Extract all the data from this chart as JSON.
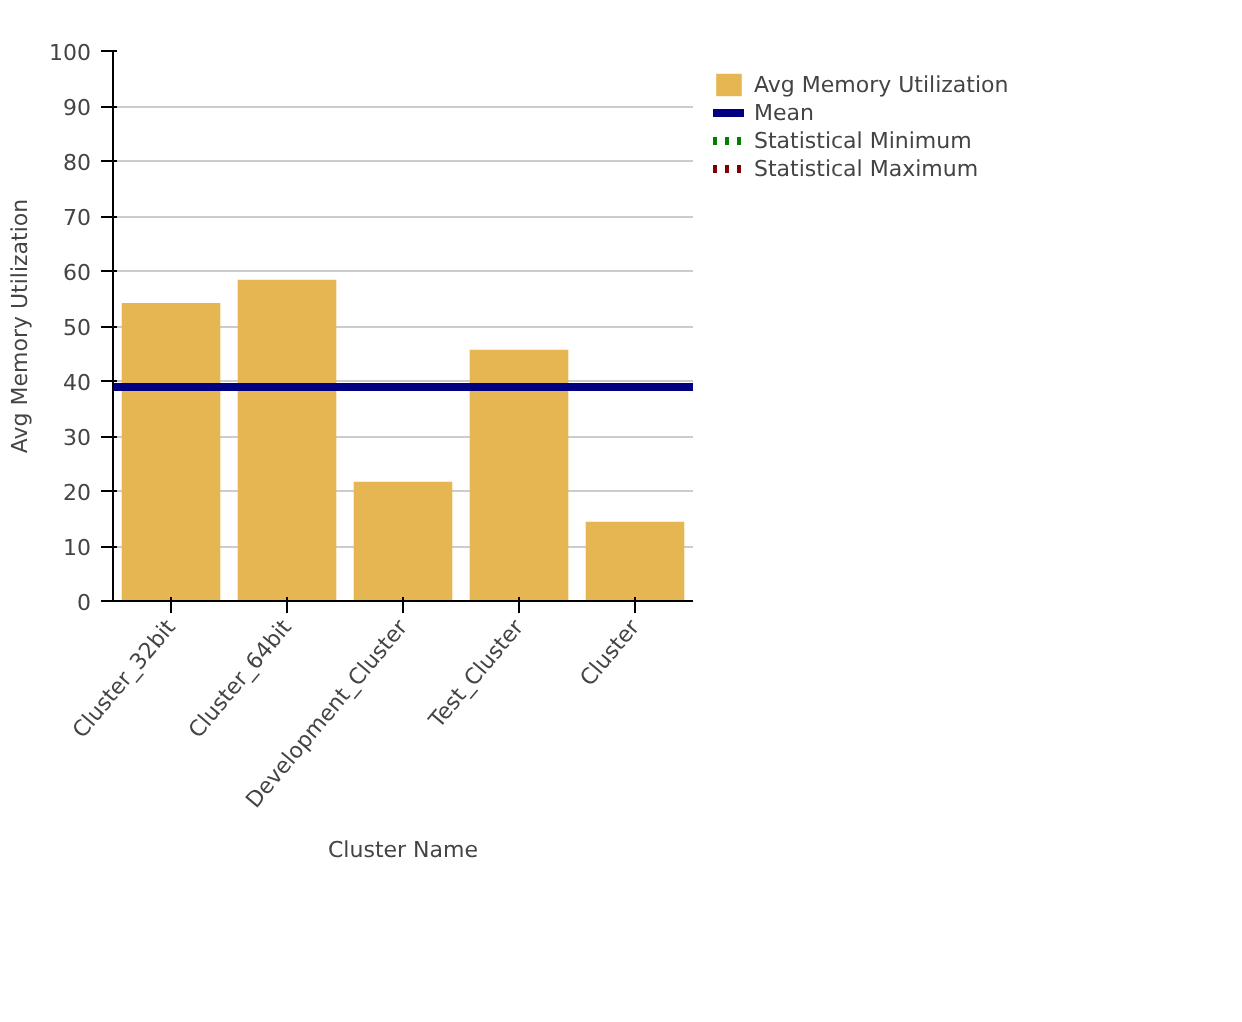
{
  "chart_data": {
    "type": "bar",
    "xlabel": "Cluster Name",
    "ylabel": "Avg Memory Utilization",
    "categories": [
      "Cluster_32bit",
      "Cluster_64bit",
      "Development_Cluster",
      "Test_Cluster",
      "Cluster"
    ],
    "series": [
      {
        "name": "Avg Memory Utilization",
        "color": "#e6b652",
        "values": [
          54.2,
          58.4,
          21.7,
          45.7,
          14.4
        ]
      }
    ],
    "ylim": [
      0,
      100
    ],
    "yticks": [
      0,
      10,
      20,
      30,
      40,
      50,
      60,
      70,
      80,
      90,
      100
    ],
    "grid": "y",
    "legend": "right",
    "ref_lines": [
      {
        "axis": "y",
        "value": 38.9,
        "label": "Mean",
        "color": "#000080",
        "line_style": "solid"
      },
      {
        "axis": "y",
        "value": null,
        "label": "Statistical Minimum",
        "color": "#008000",
        "line_style": "dotted"
      },
      {
        "axis": "y",
        "value": null,
        "label": "Statistical Maximum",
        "color": "#800000",
        "line_style": "dotted"
      }
    ]
  }
}
